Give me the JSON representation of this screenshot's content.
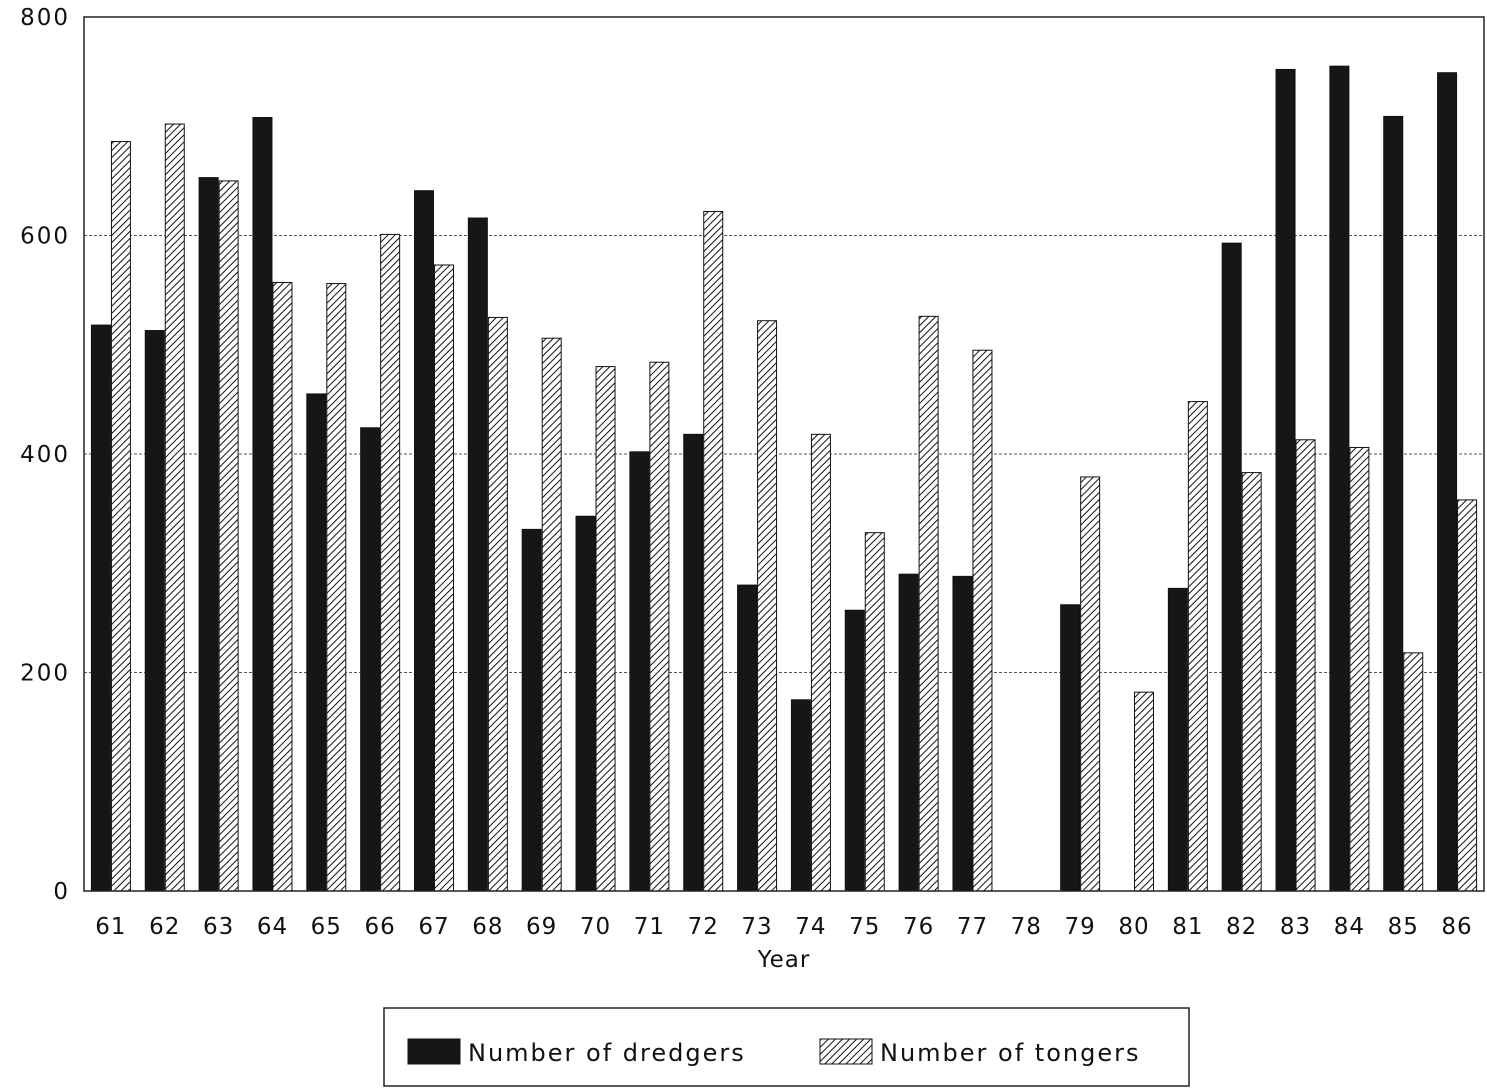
{
  "chart_data": {
    "type": "bar",
    "xlabel": "Year",
    "ylabel": "",
    "ylim": [
      0,
      800
    ],
    "yticks": [
      0,
      200,
      400,
      600,
      800
    ],
    "grid": true,
    "legend_position": "bottom-center",
    "categories": [
      "61",
      "62",
      "63",
      "64",
      "65",
      "66",
      "67",
      "68",
      "69",
      "70",
      "71",
      "72",
      "73",
      "74",
      "75",
      "76",
      "77",
      "78",
      "79",
      "80",
      "81",
      "82",
      "83",
      "84",
      "85",
      "86"
    ],
    "series": [
      {
        "name": "Number of dredgers",
        "color": "#161616",
        "pattern": "solid",
        "values": [
          518,
          513,
          653,
          708,
          455,
          424,
          641,
          616,
          331,
          343,
          402,
          418,
          280,
          175,
          257,
          290,
          288,
          0,
          262,
          0,
          277,
          593,
          752,
          755,
          709,
          749
        ]
      },
      {
        "name": "Number of tongers",
        "color": "#ffffff",
        "pattern": "diagonal-hatch",
        "values": [
          686,
          702,
          650,
          557,
          556,
          601,
          573,
          525,
          506,
          480,
          484,
          622,
          522,
          418,
          328,
          526,
          495,
          0,
          379,
          182,
          448,
          383,
          413,
          406,
          218,
          358
        ]
      }
    ]
  }
}
